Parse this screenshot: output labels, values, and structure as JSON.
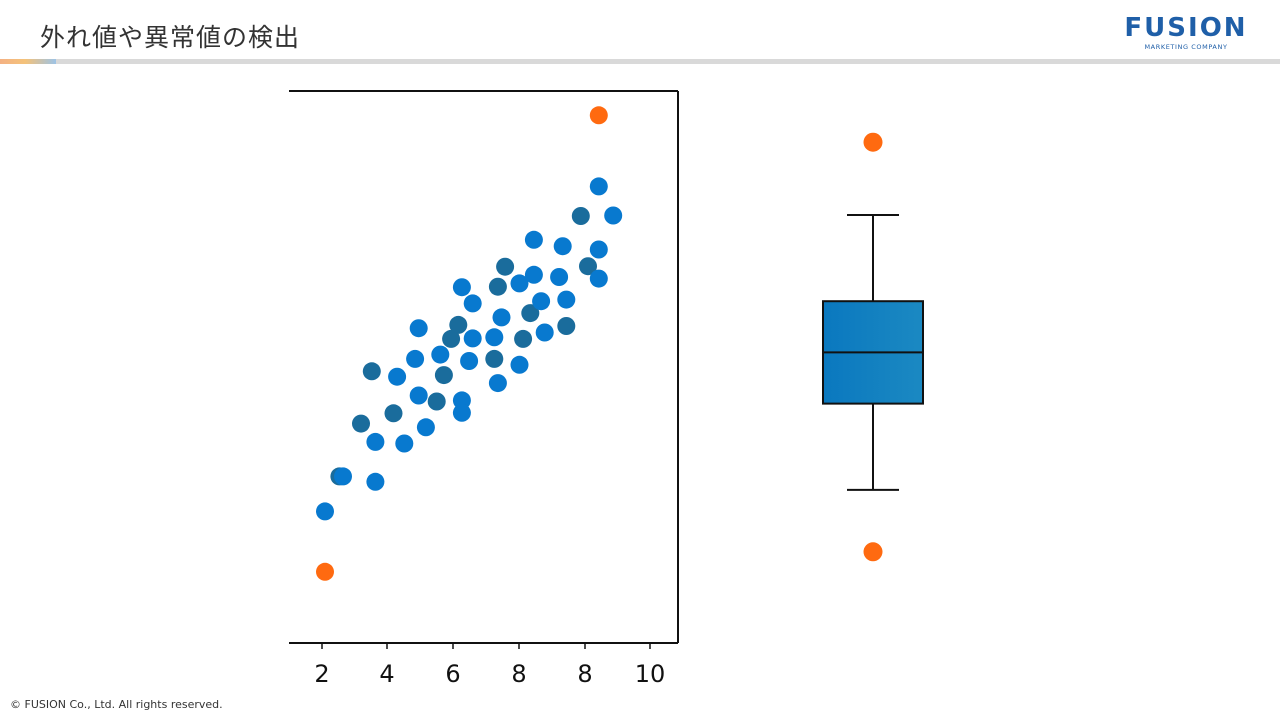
{
  "slide": {
    "title": "外れ値や異常値の検出",
    "copyright": "© FUSION Co., Ltd. All rights reserved."
  },
  "logo": {
    "name": "FUSION",
    "tagline": "MARKETING COMPANY",
    "color": "#1f5fa8"
  },
  "colors": {
    "point_blue": "#0879cf",
    "point_dark": "#1a6c9c",
    "outlier": "#ff6a10",
    "box_fill": "#0a78bf",
    "axis": "#111111"
  },
  "chart_data": [
    {
      "type": "scatter",
      "title": "",
      "xlabel": "",
      "ylabel": "",
      "x_tick_labels": [
        "2",
        "4",
        "6",
        "8",
        "8",
        "10"
      ],
      "xlim": [
        1,
        11.8
      ],
      "ylim": [
        0,
        100
      ],
      "grid": false,
      "series": [
        {
          "values": [
            [
              2.0,
              22.0
            ],
            [
              2.4,
              28.5
            ],
            [
              2.5,
              28.5
            ],
            [
              3.4,
              27.5
            ],
            [
              3.0,
              38.3
            ],
            [
              3.4,
              34.9
            ],
            [
              4.2,
              34.6
            ],
            [
              3.9,
              40.2
            ],
            [
              4.8,
              37.6
            ],
            [
              4.6,
              43.5
            ],
            [
              5.1,
              42.4
            ],
            [
              5.8,
              42.6
            ],
            [
              5.8,
              40.3
            ],
            [
              3.3,
              48.0
            ],
            [
              4.0,
              47.0
            ],
            [
              4.5,
              50.3
            ],
            [
              5.3,
              47.3
            ],
            [
              5.2,
              51.1
            ],
            [
              4.6,
              56.0
            ],
            [
              5.5,
              54.0
            ],
            [
              6.0,
              49.9
            ],
            [
              6.1,
              54.1
            ],
            [
              5.7,
              56.6
            ],
            [
              6.1,
              60.6
            ],
            [
              5.8,
              63.6
            ],
            [
              6.7,
              50.3
            ],
            [
              6.8,
              45.8
            ],
            [
              7.4,
              49.2
            ],
            [
              7.5,
              54.0
            ],
            [
              6.7,
              54.3
            ],
            [
              6.9,
              58.0
            ],
            [
              7.7,
              58.8
            ],
            [
              8.0,
              61.0
            ],
            [
              8.1,
              55.2
            ],
            [
              8.7,
              56.4
            ],
            [
              8.7,
              61.3
            ],
            [
              8.5,
              65.5
            ],
            [
              6.8,
              63.7
            ],
            [
              7.4,
              64.3
            ],
            [
              7.8,
              65.9
            ],
            [
              7.0,
              67.4
            ],
            [
              7.8,
              72.4
            ],
            [
              8.6,
              71.2
            ],
            [
              9.3,
              67.5
            ],
            [
              9.6,
              70.6
            ],
            [
              9.6,
              65.2
            ],
            [
              9.1,
              76.8
            ],
            [
              10.0,
              76.9
            ],
            [
              9.6,
              82.3
            ]
          ]
        },
        {
          "values": [
            [
              2.0,
              10.8
            ],
            [
              9.6,
              95.5
            ]
          ]
        }
      ]
    },
    {
      "type": "boxplot",
      "title": "",
      "ylim": [
        0,
        100
      ],
      "whisker_low": 26.0,
      "q1": 42.0,
      "median": 51.5,
      "q3": 61.0,
      "whisker_high": 77.0,
      "outliers": [
        14.5,
        90.5
      ]
    }
  ]
}
